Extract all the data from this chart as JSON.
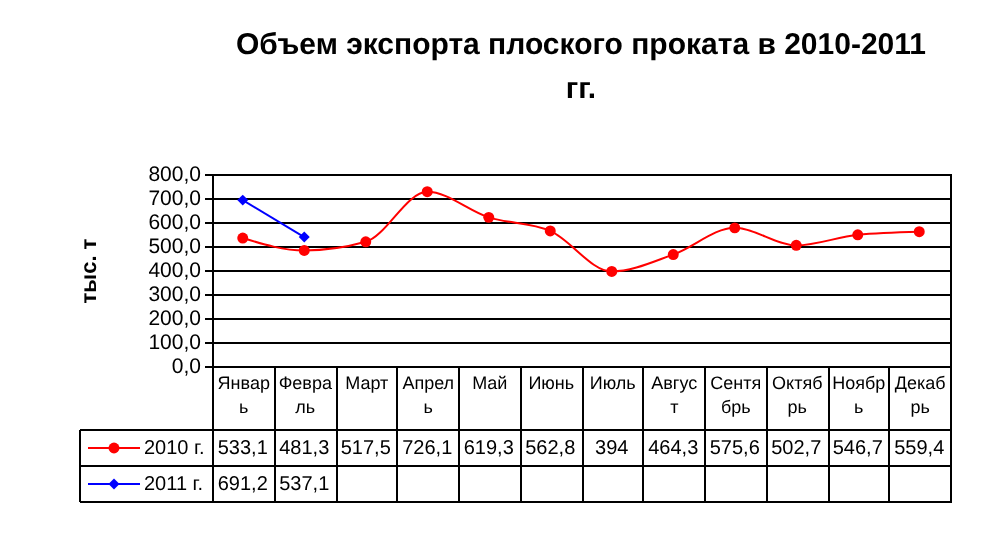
{
  "chart_data": {
    "type": "line",
    "title": "Объем экспорта плоского проката в 2010-2011 гг.",
    "ylabel": "тыс. т",
    "categories": [
      "Январь",
      "Февраль",
      "Март",
      "Апрель",
      "Май",
      "Июнь",
      "Июль",
      "Август",
      "Сентябрь",
      "Октябрь",
      "Ноябрь",
      "Декабрь"
    ],
    "series": [
      {
        "name": "2010 г.",
        "color": "#ff0000",
        "marker": "circle",
        "values": [
          533.1,
          481.3,
          517.5,
          726.1,
          619.3,
          562.8,
          394,
          464.3,
          575.6,
          502.7,
          546.7,
          559.4
        ],
        "value_labels": [
          "533,1",
          "481,3",
          "517,5",
          "726,1",
          "619,3",
          "562,8",
          "394",
          "464,3",
          "575,6",
          "502,7",
          "546,7",
          "559,4"
        ]
      },
      {
        "name": "2011 г.",
        "color": "#0000ff",
        "marker": "diamond",
        "values": [
          691.2,
          537.1,
          null,
          null,
          null,
          null,
          null,
          null,
          null,
          null,
          null,
          null
        ],
        "value_labels": [
          "691,2",
          "537,1",
          null,
          null,
          null,
          null,
          null,
          null,
          null,
          null,
          null,
          null
        ]
      }
    ],
    "ylim": [
      0,
      800
    ],
    "yticks": [
      {
        "value": 0,
        "label": "0,0"
      },
      {
        "value": 100,
        "label": "100,0"
      },
      {
        "value": 200,
        "label": "200,0"
      },
      {
        "value": 300,
        "label": "300,0"
      },
      {
        "value": 400,
        "label": "400,0"
      },
      {
        "value": 500,
        "label": "500,0"
      },
      {
        "value": 600,
        "label": "600,0"
      },
      {
        "value": 700,
        "label": "700,0"
      },
      {
        "value": 800,
        "label": "800,0"
      }
    ],
    "grid": "y",
    "legend": "bottom left"
  }
}
